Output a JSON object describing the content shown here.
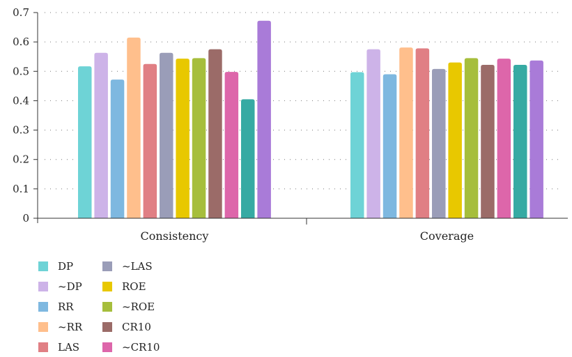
{
  "chart_data": {
    "type": "bar",
    "title": "",
    "xlabel": "",
    "ylabel": "",
    "ylim": [
      0,
      0.7
    ],
    "yticks": [
      "0",
      "0.1",
      "0.2",
      "0.3",
      "0.4",
      "0.5",
      "0.6",
      "0.7"
    ],
    "grid": "horizontal-dotted",
    "legend_position": "bottom-left",
    "categories": [
      "Consistency",
      "Coverage"
    ],
    "series": [
      {
        "name": "DP",
        "color": "#6ed3d6",
        "values": [
          0.517,
          0.497
        ]
      },
      {
        "name": "~DP",
        "color": "#cdb3e8",
        "values": [
          0.563,
          0.575
        ]
      },
      {
        "name": "RR",
        "color": "#7eb8e0",
        "values": [
          0.472,
          0.49
        ]
      },
      {
        "name": "~RR",
        "color": "#ffbf8c",
        "values": [
          0.615,
          0.581
        ]
      },
      {
        "name": "LAS",
        "color": "#e07f84",
        "values": [
          0.525,
          0.578
        ]
      },
      {
        "name": "~LAS",
        "color": "#9a9db8",
        "values": [
          0.563,
          0.508
        ]
      },
      {
        "name": "ROE",
        "color": "#e8c800",
        "values": [
          0.543,
          0.53
        ]
      },
      {
        "name": "~ROE",
        "color": "#a6be3c",
        "values": [
          0.545,
          0.545
        ]
      },
      {
        "name": "CR10",
        "color": "#9b6b68",
        "values": [
          0.575,
          0.522
        ]
      },
      {
        "name": "~CR10",
        "color": "#dd66aa",
        "values": [
          0.498,
          0.543
        ]
      },
      {
        "name": "",
        "color": "#36aaa3",
        "values": [
          0.405,
          0.522
        ]
      },
      {
        "name": "",
        "color": "#a97bd8",
        "values": [
          0.672,
          0.537
        ]
      }
    ]
  }
}
